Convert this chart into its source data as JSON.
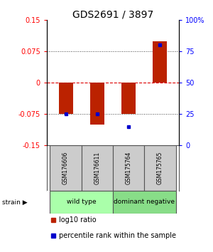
{
  "title": "GDS2691 / 3897",
  "samples": [
    "GSM176606",
    "GSM176611",
    "GSM175764",
    "GSM175765"
  ],
  "log10_ratio": [
    -0.075,
    -0.1,
    -0.075,
    0.1
  ],
  "percentile_rank": [
    25,
    25,
    15,
    80
  ],
  "ylim_left": [
    -0.15,
    0.15
  ],
  "ylim_right": [
    0,
    100
  ],
  "yticks_left": [
    -0.15,
    -0.075,
    0,
    0.075,
    0.15
  ],
  "ytick_labels_left": [
    "-0.15",
    "-0.075",
    "0",
    "0.075",
    "0.15"
  ],
  "yticks_right": [
    0,
    25,
    50,
    75,
    100
  ],
  "ytick_labels_right": [
    "0",
    "25",
    "50",
    "75",
    "100%"
  ],
  "bar_color": "#bb2200",
  "dot_color": "#0000cc",
  "groups": [
    {
      "label": "wild type",
      "start": 0,
      "end": 2,
      "color": "#aaffaa"
    },
    {
      "label": "dominant negative",
      "start": 2,
      "end": 4,
      "color": "#88dd88"
    }
  ],
  "legend_items": [
    {
      "color": "#bb2200",
      "label": "log10 ratio"
    },
    {
      "color": "#0000cc",
      "label": "percentile rank within the sample"
    }
  ],
  "hline_0_color": "#dd0000",
  "hline_dotted_color": "#444444",
  "sample_box_color": "#cccccc",
  "sample_box_edge": "#555555",
  "title_fontsize": 10,
  "tick_fontsize": 7,
  "legend_fontsize": 7,
  "sample_fontsize": 5.5,
  "group_fontsize": 6.5
}
